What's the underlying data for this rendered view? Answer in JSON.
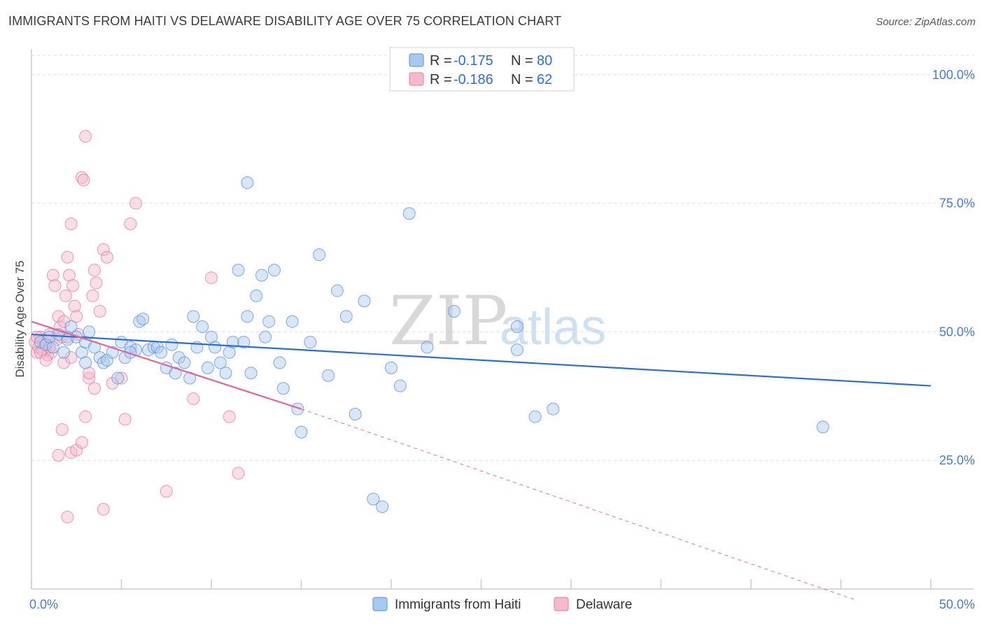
{
  "header": {
    "title": "IMMIGRANTS FROM HAITI VS DELAWARE DISABILITY AGE OVER 75 CORRELATION CHART",
    "source": "Source: ZipAtlas.com"
  },
  "watermark": {
    "zip": "ZIP",
    "atlas": "atlas"
  },
  "legend": {
    "series1": {
      "r_label": "R = ",
      "r_value": "-0.175",
      "n_label": "N = ",
      "n_value": "80"
    },
    "series2": {
      "r_label": "R = ",
      "r_value": "-0.186",
      "n_label": "N = ",
      "n_value": "62"
    }
  },
  "bottom_legend": {
    "series1": "Immigrants from Haiti",
    "series2": "Delaware"
  },
  "colors": {
    "blue_fill": "#a9c8ef",
    "blue_stroke": "#5b8fd6",
    "blue_line": "#2a6fd0",
    "pink_fill": "#f5b8cc",
    "pink_stroke": "#e07aa0",
    "pink_line": "#e0669a",
    "grid": "#dddddd",
    "tick_text": "#4a7cc9"
  },
  "chart_data": {
    "type": "scatter",
    "title": "IMMIGRANTS FROM HAITI VS DELAWARE DISABILITY AGE OVER 75 CORRELATION CHART",
    "xlabel": "",
    "ylabel": "Disability Age Over 75",
    "xlim": [
      0,
      50
    ],
    "ylim": [
      0,
      105
    ],
    "x_ticks": [
      "0.0%",
      "50.0%"
    ],
    "y_ticks": [
      {
        "value": 25,
        "label": "25.0%"
      },
      {
        "value": 50,
        "label": "50.0%"
      },
      {
        "value": 75,
        "label": "75.0%"
      },
      {
        "value": 100,
        "label": "100.0%"
      }
    ],
    "grid": true,
    "legend_position": "top-center",
    "series": [
      {
        "name": "Immigrants from Haiti",
        "color": "#a9c8ef",
        "r": -0.175,
        "n": 80,
        "trend": {
          "x0": 0,
          "y0": 49.5,
          "x1": 50,
          "y1": 39.5
        },
        "points": [
          [
            0.5,
            48
          ],
          [
            0.8,
            47.5
          ],
          [
            1.0,
            49
          ],
          [
            1.2,
            47
          ],
          [
            1.5,
            49.5
          ],
          [
            1.8,
            46
          ],
          [
            2.0,
            48.5
          ],
          [
            2.2,
            51
          ],
          [
            2.5,
            49
          ],
          [
            2.8,
            46
          ],
          [
            3.0,
            48
          ],
          [
            3.2,
            50
          ],
          [
            3.5,
            47
          ],
          [
            3.8,
            45
          ],
          [
            4.0,
            44
          ],
          [
            4.2,
            44.5
          ],
          [
            4.5,
            46
          ],
          [
            4.8,
            41
          ],
          [
            5.0,
            48
          ],
          [
            5.2,
            45
          ],
          [
            5.5,
            47
          ],
          [
            5.8,
            46.5
          ],
          [
            6.0,
            52
          ],
          [
            6.2,
            52.5
          ],
          [
            6.5,
            46.5
          ],
          [
            6.8,
            47
          ],
          [
            7.0,
            47
          ],
          [
            7.2,
            46
          ],
          [
            7.5,
            43
          ],
          [
            7.8,
            47.5
          ],
          [
            8.0,
            42
          ],
          [
            8.2,
            45
          ],
          [
            8.5,
            44
          ],
          [
            8.8,
            41
          ],
          [
            9.0,
            53
          ],
          [
            9.2,
            47
          ],
          [
            9.5,
            51
          ],
          [
            9.8,
            43
          ],
          [
            10.0,
            49
          ],
          [
            10.2,
            47
          ],
          [
            10.5,
            44
          ],
          [
            10.8,
            42
          ],
          [
            11.0,
            46
          ],
          [
            11.2,
            48
          ],
          [
            11.5,
            62
          ],
          [
            11.8,
            48
          ],
          [
            12.0,
            53
          ],
          [
            12.2,
            42
          ],
          [
            12.5,
            57
          ],
          [
            12.8,
            61
          ],
          [
            13.0,
            49
          ],
          [
            13.2,
            52
          ],
          [
            13.5,
            62
          ],
          [
            13.8,
            44
          ],
          [
            14.0,
            39
          ],
          [
            14.5,
            52
          ],
          [
            14.8,
            35
          ],
          [
            15.0,
            30.5
          ],
          [
            15.5,
            48
          ],
          [
            16.0,
            65
          ],
          [
            16.5,
            41.5
          ],
          [
            17.0,
            58
          ],
          [
            17.5,
            53
          ],
          [
            18.0,
            34
          ],
          [
            18.5,
            56
          ],
          [
            19.0,
            17.5
          ],
          [
            19.5,
            16
          ],
          [
            20.0,
            43
          ],
          [
            20.5,
            39.5
          ],
          [
            21.0,
            73
          ],
          [
            12.0,
            79
          ],
          [
            22.0,
            47
          ],
          [
            23.5,
            54
          ],
          [
            27.0,
            51
          ],
          [
            27.0,
            46.5
          ],
          [
            28.0,
            33.5
          ],
          [
            29.0,
            35
          ],
          [
            44.0,
            31.5
          ],
          [
            3.0,
            44
          ],
          [
            5.5,
            46
          ]
        ]
      },
      {
        "name": "Delaware",
        "color": "#f5b8cc",
        "r": -0.186,
        "n": 62,
        "trend": {
          "x0": 0,
          "y0": 52,
          "x1": 15,
          "y1": 35,
          "dashed_to_x": 50,
          "dashed_to_y": -2
        },
        "points": [
          [
            0.2,
            48
          ],
          [
            0.3,
            46
          ],
          [
            0.4,
            47
          ],
          [
            0.5,
            49
          ],
          [
            0.6,
            46.5
          ],
          [
            0.7,
            48
          ],
          [
            0.8,
            47.5
          ],
          [
            0.9,
            45.5
          ],
          [
            1.0,
            49.5
          ],
          [
            1.1,
            46
          ],
          [
            1.2,
            61
          ],
          [
            1.3,
            59
          ],
          [
            1.4,
            48.5
          ],
          [
            1.5,
            53
          ],
          [
            1.6,
            51
          ],
          [
            1.7,
            49
          ],
          [
            1.8,
            44
          ],
          [
            1.9,
            57
          ],
          [
            2.0,
            64.5
          ],
          [
            2.1,
            61
          ],
          [
            2.2,
            71
          ],
          [
            2.3,
            59
          ],
          [
            2.4,
            55
          ],
          [
            2.5,
            53
          ],
          [
            2.6,
            49.5
          ],
          [
            2.8,
            80
          ],
          [
            2.9,
            79.5
          ],
          [
            3.0,
            88
          ],
          [
            3.2,
            41
          ],
          [
            3.4,
            57
          ],
          [
            3.5,
            62
          ],
          [
            3.6,
            59.5
          ],
          [
            3.8,
            54
          ],
          [
            4.0,
            66
          ],
          [
            4.2,
            64.5
          ],
          [
            4.5,
            40
          ],
          [
            5.0,
            41
          ],
          [
            5.2,
            33
          ],
          [
            5.5,
            71
          ],
          [
            5.8,
            75
          ],
          [
            1.5,
            26
          ],
          [
            1.7,
            31
          ],
          [
            2.0,
            14
          ],
          [
            2.2,
            26.5
          ],
          [
            2.5,
            27
          ],
          [
            2.8,
            28.5
          ],
          [
            3.0,
            33.5
          ],
          [
            3.5,
            39
          ],
          [
            4.0,
            15.5
          ],
          [
            7.5,
            19
          ],
          [
            9.0,
            37
          ],
          [
            10.0,
            60.5
          ],
          [
            11.0,
            33.5
          ],
          [
            11.5,
            22.5
          ],
          [
            2.2,
            45
          ],
          [
            1.0,
            47
          ],
          [
            0.5,
            46
          ],
          [
            1.8,
            52
          ],
          [
            2.0,
            49
          ],
          [
            3.2,
            42
          ],
          [
            0.3,
            49
          ],
          [
            0.8,
            44.5
          ]
        ]
      }
    ]
  }
}
